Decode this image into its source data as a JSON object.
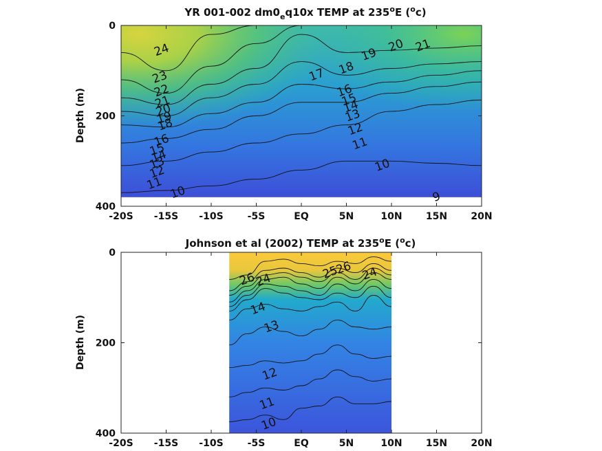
{
  "chart_data": [
    {
      "type": "heatmap",
      "title_main": "YR 001-002 dm0",
      "title_sub": "e",
      "title_rest": "q10x TEMP at 235",
      "title_sup": "o",
      "title_end": "E (",
      "title_sup2": "o",
      "title_close": "c)",
      "ylabel": "Depth (m)",
      "xlim": [
        -20,
        20
      ],
      "ylim": [
        0,
        400
      ],
      "ycoverage": [
        0,
        380
      ],
      "xcoverage": [
        -20,
        20
      ],
      "xticks": [
        -20,
        -15,
        -10,
        -5,
        0,
        5,
        10,
        15,
        20
      ],
      "xtick_labels": [
        "-20S",
        "-15S",
        "-10S",
        "-5S",
        "EQ",
        "5N",
        "10N",
        "15N",
        "20N"
      ],
      "yticks": [
        0,
        200,
        400
      ],
      "ytick_labels": [
        "0",
        "200",
        "400"
      ],
      "contour_labels": [
        {
          "text": "24",
          "x": -15.5,
          "y": 55
        },
        {
          "text": "23",
          "x": -15.7,
          "y": 115
        },
        {
          "text": "22",
          "x": -15.5,
          "y": 145
        },
        {
          "text": "21",
          "x": -15.4,
          "y": 170
        },
        {
          "text": "20",
          "x": -15.3,
          "y": 188
        },
        {
          "text": "19",
          "x": -15.2,
          "y": 205
        },
        {
          "text": "18",
          "x": -15.1,
          "y": 220
        },
        {
          "text": "16",
          "x": -15.5,
          "y": 255
        },
        {
          "text": "15",
          "x": -16.0,
          "y": 275
        },
        {
          "text": "14",
          "x": -15.8,
          "y": 290
        },
        {
          "text": "13",
          "x": -16.0,
          "y": 305
        },
        {
          "text": "12",
          "x": -16.0,
          "y": 325
        },
        {
          "text": "11",
          "x": -16.3,
          "y": 350
        },
        {
          "text": "10",
          "x": -13.7,
          "y": 370
        },
        {
          "text": "17",
          "x": 1.7,
          "y": 110
        },
        {
          "text": "18",
          "x": 5.0,
          "y": 95
        },
        {
          "text": "19",
          "x": 7.5,
          "y": 65
        },
        {
          "text": "20",
          "x": 10.5,
          "y": 45
        },
        {
          "text": "21",
          "x": 13.5,
          "y": 45
        },
        {
          "text": "16",
          "x": 4.8,
          "y": 145
        },
        {
          "text": "15",
          "x": 5.3,
          "y": 165
        },
        {
          "text": "14",
          "x": 5.5,
          "y": 180
        },
        {
          "text": "13",
          "x": 5.7,
          "y": 200
        },
        {
          "text": "12",
          "x": 6.0,
          "y": 230
        },
        {
          "text": "11",
          "x": 6.5,
          "y": 262
        },
        {
          "text": "10",
          "x": 9.0,
          "y": 310
        },
        {
          "text": "9",
          "x": 15.0,
          "y": 380
        }
      ],
      "isotherm_depths_x": [
        -20,
        -15,
        -10,
        -5,
        0,
        5,
        10,
        15,
        20
      ],
      "isotherms": [
        {
          "value": 10,
          "depths": [
            370,
            365,
            355,
            340,
            320,
            300,
            300,
            305,
            310
          ]
        },
        {
          "value": 12,
          "depths": [
            310,
            300,
            280,
            260,
            240,
            220,
            190,
            175,
            165
          ]
        },
        {
          "value": 14,
          "depths": [
            260,
            250,
            230,
            200,
            170,
            170,
            150,
            135,
            125
          ]
        },
        {
          "value": 16,
          "depths": [
            220,
            225,
            195,
            170,
            130,
            140,
            125,
            110,
            100
          ]
        },
        {
          "value": 18,
          "depths": [
            190,
            200,
            160,
            130,
            80,
            110,
            95,
            85,
            80
          ]
        },
        {
          "value": 20,
          "depths": [
            160,
            175,
            130,
            95,
            20,
            60,
            55,
            50,
            45
          ]
        },
        {
          "value": 22,
          "depths": [
            120,
            150,
            90,
            40,
            0,
            0,
            0,
            0,
            0
          ]
        },
        {
          "value": 24,
          "depths": [
            60,
            100,
            20,
            0,
            0,
            0,
            0,
            0,
            0
          ]
        }
      ]
    },
    {
      "type": "heatmap",
      "title_main": "Johnson et al (2002) TEMP at 235",
      "title_sup": "o",
      "title_end": "E (",
      "title_sup2": "o",
      "title_close": "c)",
      "ylabel": "Depth (m)",
      "xlim": [
        -20,
        20
      ],
      "ylim": [
        0,
        400
      ],
      "xcoverage": [
        -8,
        10
      ],
      "xticks": [
        -20,
        -15,
        -10,
        -5,
        0,
        5,
        10,
        15,
        20
      ],
      "xtick_labels": [
        "-20S",
        "-15S",
        "-10S",
        "-5S",
        "EQ",
        "5N",
        "10N",
        "15N",
        "20N"
      ],
      "yticks": [
        0,
        200,
        400
      ],
      "ytick_labels": [
        "0",
        "200",
        "400"
      ],
      "contour_labels": [
        {
          "text": "26",
          "x": -6.0,
          "y": 60
        },
        {
          "text": "24",
          "x": -4.2,
          "y": 62
        },
        {
          "text": "14",
          "x": -4.8,
          "y": 125
        },
        {
          "text": "13",
          "x": -3.3,
          "y": 165
        },
        {
          "text": "25",
          "x": 3.2,
          "y": 45
        },
        {
          "text": "26",
          "x": 4.7,
          "y": 35
        },
        {
          "text": "24",
          "x": 7.6,
          "y": 48
        },
        {
          "text": "12",
          "x": -3.5,
          "y": 270
        },
        {
          "text": "11",
          "x": -3.8,
          "y": 335
        },
        {
          "text": "10",
          "x": -3.6,
          "y": 380
        }
      ],
      "isotherm_depths_x": [
        -8,
        -6,
        -4,
        -2,
        0,
        2,
        4,
        6,
        8,
        10
      ],
      "isotherms": [
        {
          "value": 10,
          "depths": [
            375,
            370,
            360,
            370,
            345,
            340,
            320,
            335,
            335,
            330
          ]
        },
        {
          "value": 11,
          "depths": [
            320,
            310,
            300,
            305,
            295,
            280,
            260,
            275,
            285,
            280
          ]
        },
        {
          "value": 12,
          "depths": [
            255,
            250,
            240,
            245,
            240,
            225,
            205,
            225,
            235,
            230
          ]
        },
        {
          "value": 13,
          "depths": [
            205,
            180,
            165,
            175,
            185,
            170,
            150,
            165,
            170,
            165
          ]
        },
        {
          "value": 14,
          "depths": [
            150,
            125,
            115,
            125,
            130,
            120,
            110,
            130,
            95,
            120
          ]
        },
        {
          "value": 16,
          "depths": [
            130,
            105,
            80,
            90,
            100,
            105,
            90,
            100,
            75,
            100
          ]
        },
        {
          "value": 18,
          "depths": [
            120,
            95,
            70,
            75,
            85,
            95,
            70,
            85,
            60,
            80
          ]
        },
        {
          "value": 20,
          "depths": [
            110,
            85,
            60,
            55,
            70,
            80,
            55,
            70,
            45,
            60
          ]
        },
        {
          "value": 22,
          "depths": [
            95,
            75,
            50,
            45,
            55,
            65,
            45,
            60,
            35,
            50
          ]
        },
        {
          "value": 24,
          "depths": [
            85,
            65,
            40,
            35,
            45,
            55,
            35,
            45,
            25,
            40
          ]
        },
        {
          "value": 26,
          "depths": [
            60,
            50,
            20,
            15,
            25,
            30,
            20,
            25,
            10,
            20
          ]
        }
      ]
    }
  ],
  "colors": {
    "cold": "#3b4fd8",
    "mid": "#19b2bd",
    "warm": "#7fd44e",
    "hot": "#e8d43a",
    "hottest": "#fbc838"
  }
}
